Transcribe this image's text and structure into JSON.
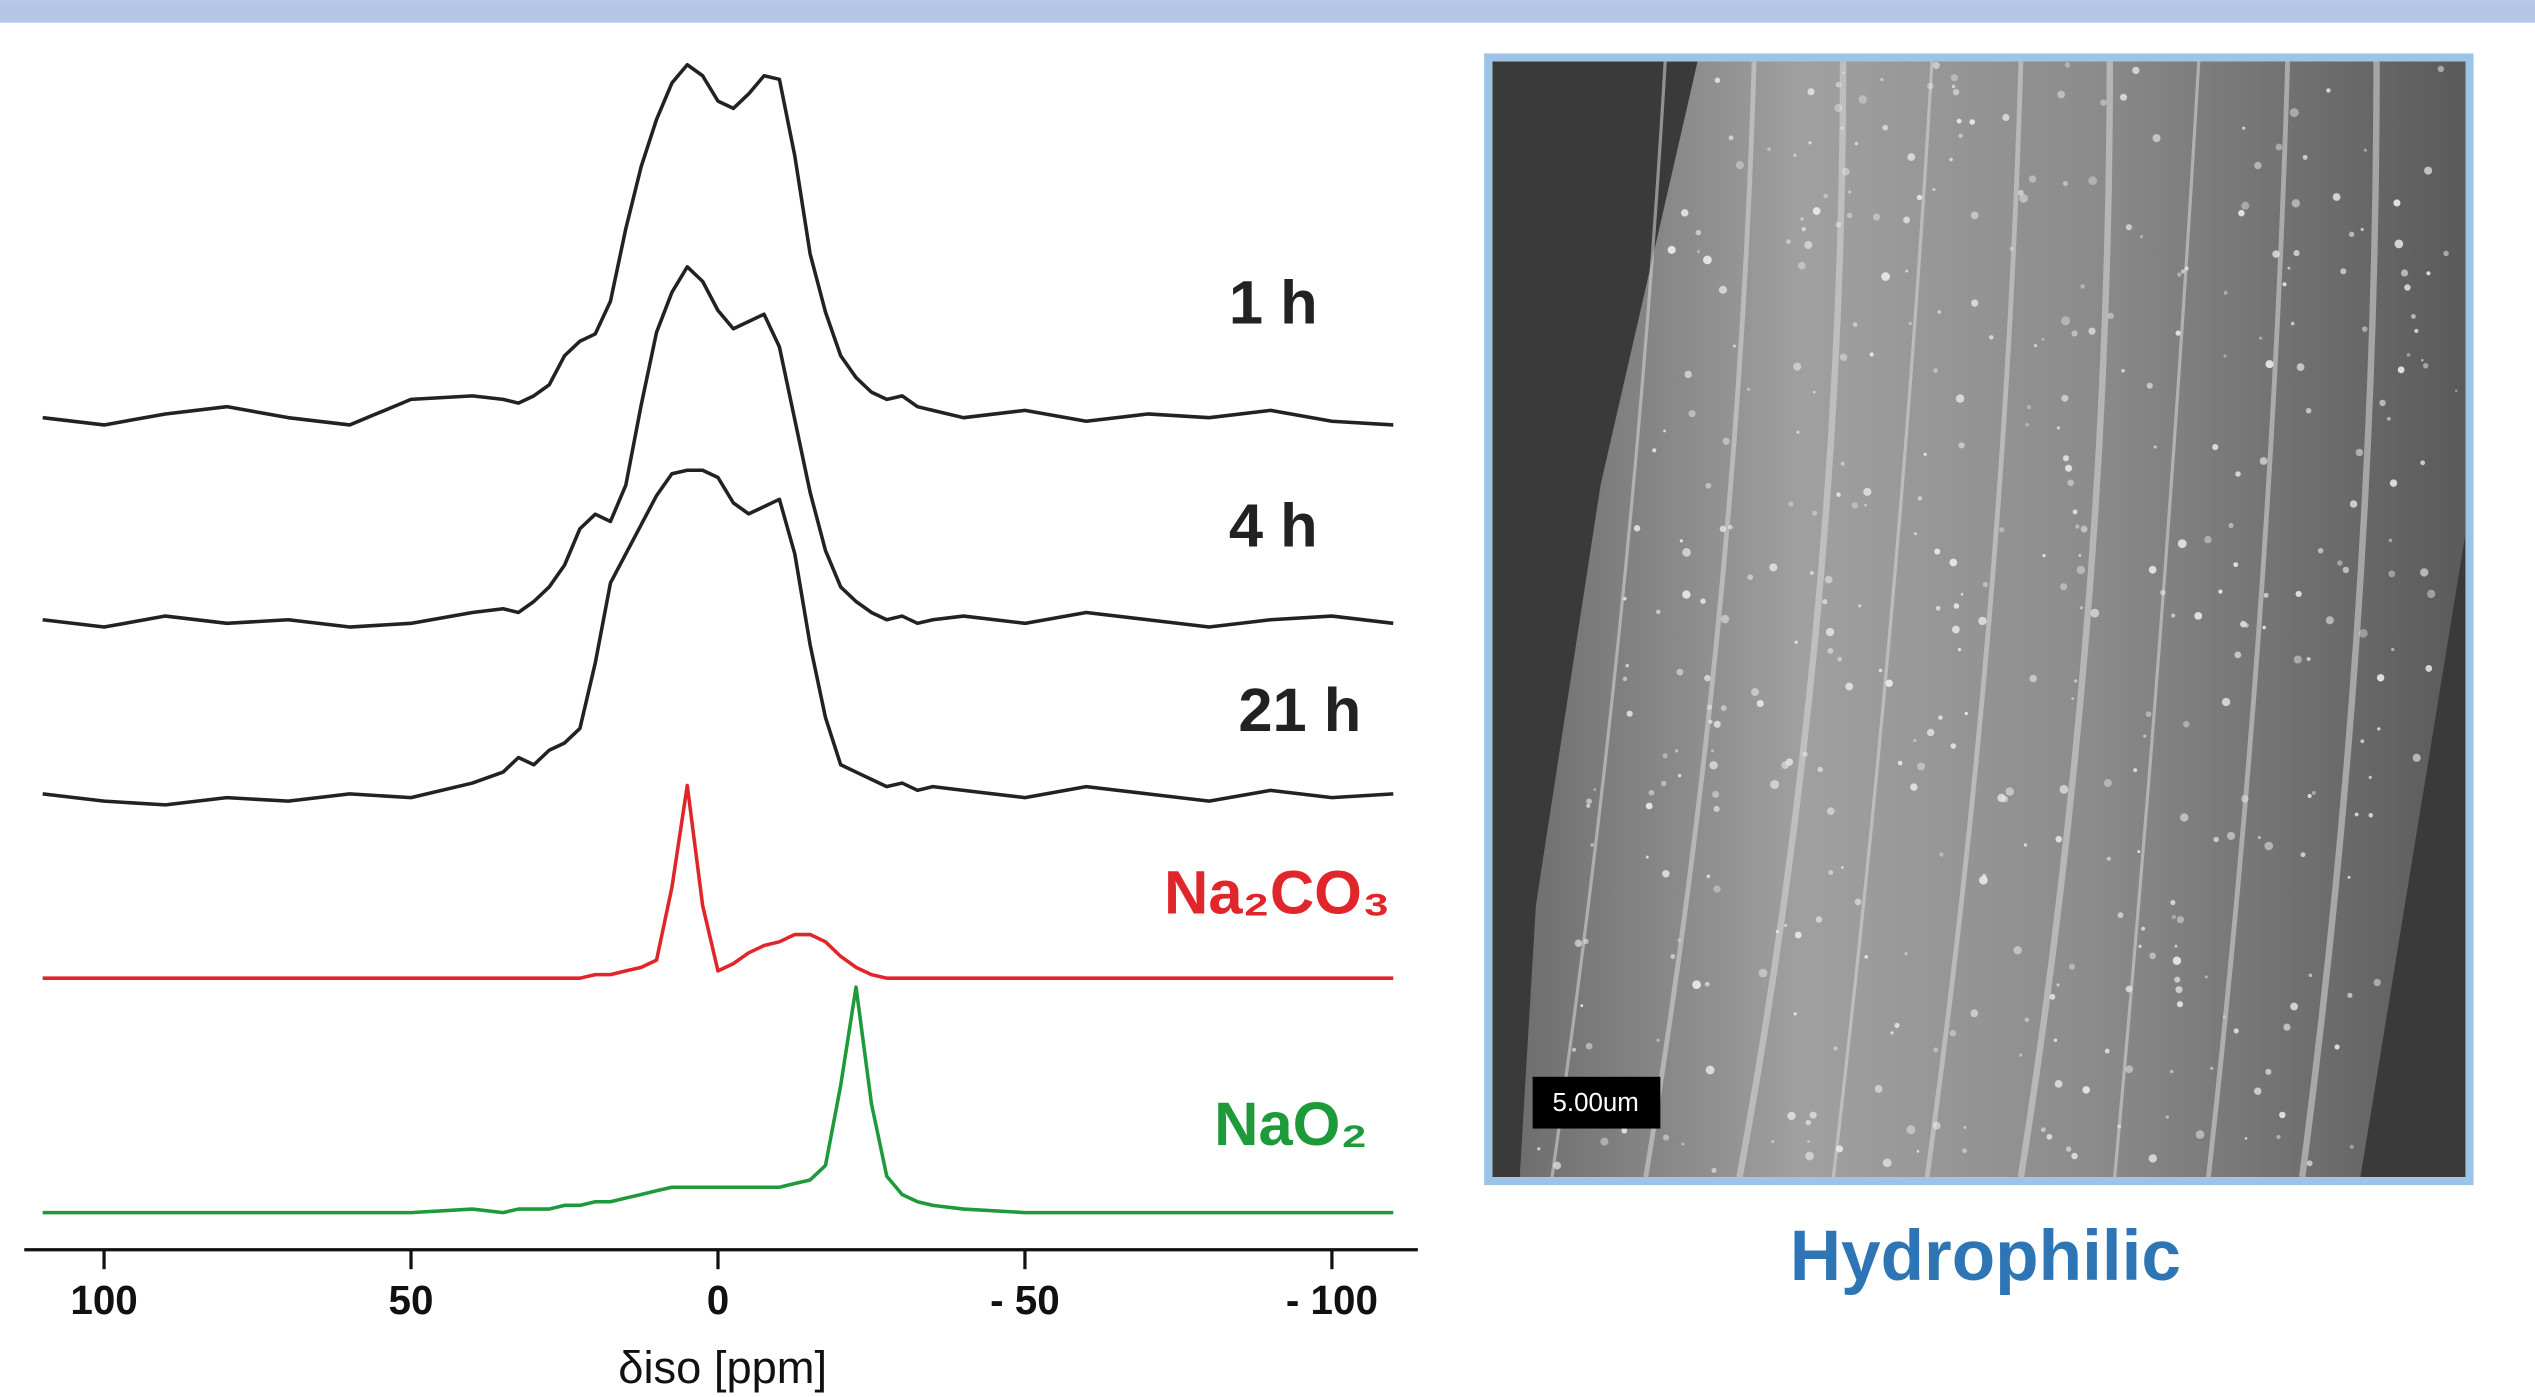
{
  "chart_data": {
    "type": "line",
    "xlabel": "δiso [ppm]",
    "xlim": [
      113,
      -114
    ],
    "xticks": [
      100,
      50,
      0,
      {
        "value": -50,
        "label": "- 50"
      },
      {
        "value": -100,
        "label": "- 100"
      }
    ],
    "x": [
      110,
      100,
      90,
      80,
      70,
      60,
      50,
      40,
      35,
      32.5,
      30,
      27.5,
      25,
      22.5,
      20,
      17.5,
      15,
      12.5,
      10,
      7.5,
      5,
      2.5,
      0,
      -2.5,
      -5,
      -7.5,
      -10,
      -12.5,
      -15,
      -17.5,
      -20,
      -22.5,
      -25,
      -27.5,
      -30,
      -32.5,
      -35,
      -40,
      -50,
      -60,
      -70,
      -80,
      -90,
      -100,
      -110
    ],
    "series": [
      {
        "name": "1 h",
        "color": "#222222",
        "values": [
          3,
          1,
          4,
          6,
          3,
          1,
          8,
          9,
          8,
          7,
          9,
          12,
          20,
          24,
          26,
          35,
          55,
          72,
          85,
          95,
          100,
          97,
          90,
          88,
          92,
          97,
          96,
          75,
          48,
          32,
          20,
          14,
          10,
          8,
          9,
          6,
          5,
          3,
          5,
          2,
          4,
          3,
          5,
          2,
          1
        ]
      },
      {
        "name": "4 h",
        "color": "#222222",
        "values": [
          3,
          1,
          4,
          2,
          3,
          1,
          2,
          5,
          6,
          5,
          8,
          12,
          18,
          28,
          32,
          30,
          40,
          62,
          82,
          93,
          100,
          96,
          88,
          83,
          85,
          87,
          78,
          58,
          38,
          22,
          12,
          8,
          5,
          3,
          4,
          2,
          3,
          4,
          2,
          5,
          3,
          1,
          3,
          4,
          2
        ]
      },
      {
        "name": "21 h",
        "color": "#222222",
        "values": [
          4,
          2,
          1,
          3,
          2,
          4,
          3,
          7,
          10,
          14,
          12,
          16,
          18,
          22,
          40,
          62,
          70,
          78,
          86,
          92,
          93,
          93,
          91,
          84,
          81,
          83,
          85,
          70,
          45,
          25,
          12,
          10,
          8,
          6,
          7,
          5,
          6,
          5,
          3,
          6,
          4,
          2,
          5,
          3,
          4
        ]
      },
      {
        "name": "Na₂CO₃",
        "color": "#e0262b",
        "values": [
          0,
          0,
          0,
          0,
          0,
          0,
          0,
          0,
          0,
          0,
          0,
          0,
          0,
          0,
          1,
          1,
          2,
          3,
          5,
          25,
          53,
          20,
          2,
          4,
          7,
          9,
          10,
          12,
          12,
          10,
          6,
          3,
          1,
          0,
          0,
          0,
          0,
          0,
          0,
          0,
          0,
          0,
          0,
          0,
          0
        ]
      },
      {
        "name": "NaO₂",
        "color": "#1f9a3a",
        "values": [
          0,
          0,
          0,
          0,
          0,
          0,
          0,
          1,
          0,
          1,
          1,
          1,
          2,
          2,
          3,
          3,
          4,
          5,
          6,
          7,
          7,
          7,
          7,
          7,
          7,
          7,
          7,
          8,
          9,
          13,
          35,
          62,
          30,
          10,
          5,
          3,
          2,
          1,
          0,
          0,
          0,
          0,
          0,
          0,
          0
        ]
      }
    ]
  },
  "micrograph": {
    "scale_bar": "5.00um",
    "caption": "Hydrophilic"
  }
}
